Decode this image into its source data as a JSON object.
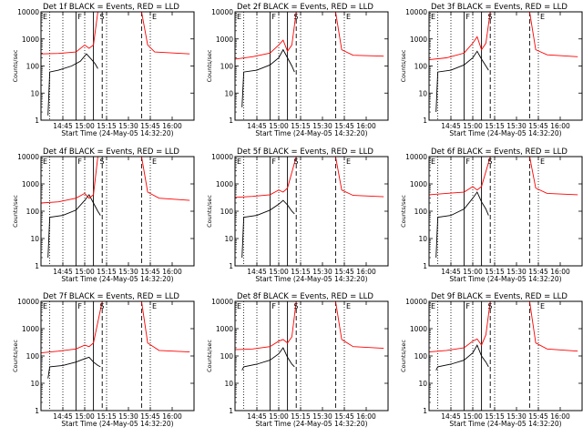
{
  "figure": {
    "xlabel": "Start Time (24-May-05 14:32:20)",
    "ylabel": "Counts/sec"
  },
  "chart_data": [
    {
      "type": "line",
      "title": "Det 1f BLACK = Events, RED = LLD",
      "xlabel": "Start Time (24-May-05 14:32:20)",
      "ylabel": "Counts/sec",
      "x_ticks": [
        "14:45",
        "15:00",
        "15:15",
        "15:30",
        "15:45",
        "16:00"
      ],
      "y_ticks": [
        "1",
        "10",
        "100",
        "1000",
        "10000"
      ],
      "ylim": [
        1,
        10000
      ],
      "yscale": "log",
      "markers": [
        "E",
        "F",
        "S",
        "E"
      ],
      "series": [
        {
          "name": "Events",
          "color": "#000000",
          "values": [
            [
              14.58,
              1.5
            ],
            [
              14.6,
              60
            ],
            [
              14.7,
              70
            ],
            [
              14.85,
              100
            ],
            [
              14.95,
              150
            ],
            [
              15.02,
              280
            ],
            [
              15.08,
              170
            ],
            [
              15.12,
              120
            ],
            [
              15.15,
              80
            ]
          ]
        },
        {
          "name": "LLD",
          "color": "#ff0000",
          "values": [
            [
              14.5,
              280
            ],
            [
              14.7,
              290
            ],
            [
              14.9,
              330
            ],
            [
              15.0,
              600
            ],
            [
              15.05,
              450
            ],
            [
              15.1,
              600
            ],
            [
              15.15,
              10000
            ],
            [
              15.65,
              10000
            ],
            [
              15.72,
              600
            ],
            [
              15.8,
              330
            ],
            [
              16.2,
              280
            ]
          ]
        }
      ]
    },
    {
      "type": "line",
      "title": "Det 2f BLACK = Events, RED = LLD",
      "xlabel": "Start Time (24-May-05 14:32:20)",
      "ylabel": "Counts/sec",
      "x_ticks": [
        "14:45",
        "15:00",
        "15:15",
        "15:30",
        "15:45",
        "16:00"
      ],
      "y_ticks": [
        "1",
        "10",
        "100",
        "1000",
        "10000"
      ],
      "ylim": [
        1,
        10000
      ],
      "yscale": "log",
      "markers": [
        "E",
        "F",
        "S",
        "E"
      ],
      "series": [
        {
          "name": "Events",
          "color": "#000000",
          "values": [
            [
              14.58,
              3
            ],
            [
              14.6,
              60
            ],
            [
              14.75,
              70
            ],
            [
              14.9,
              110
            ],
            [
              15.0,
              200
            ],
            [
              15.05,
              400
            ],
            [
              15.1,
              200
            ],
            [
              15.15,
              100
            ],
            [
              15.18,
              60
            ]
          ]
        },
        {
          "name": "LLD",
          "color": "#ff0000",
          "values": [
            [
              14.5,
              180
            ],
            [
              14.7,
              220
            ],
            [
              14.9,
              300
            ],
            [
              15.0,
              600
            ],
            [
              15.05,
              900
            ],
            [
              15.1,
              350
            ],
            [
              15.15,
              600
            ],
            [
              15.2,
              10000
            ],
            [
              15.65,
              10000
            ],
            [
              15.72,
              400
            ],
            [
              15.85,
              250
            ],
            [
              16.2,
              230
            ]
          ]
        }
      ]
    },
    {
      "type": "line",
      "title": "Det 3f BLACK = Events, RED = LLD",
      "xlabel": "Start Time (24-May-05 14:32:20)",
      "ylabel": "Counts/sec",
      "x_ticks": [
        "14:45",
        "15:00",
        "15:15",
        "15:30",
        "15:45",
        "16:00"
      ],
      "y_ticks": [
        "1",
        "10",
        "100",
        "1000",
        "10000"
      ],
      "ylim": [
        1,
        10000
      ],
      "yscale": "log",
      "markers": [
        "E",
        "F",
        "S",
        "E"
      ],
      "series": [
        {
          "name": "Events",
          "color": "#000000",
          "values": [
            [
              14.58,
              2
            ],
            [
              14.6,
              60
            ],
            [
              14.75,
              70
            ],
            [
              14.9,
              110
            ],
            [
              15.0,
              200
            ],
            [
              15.05,
              350
            ],
            [
              15.1,
              180
            ],
            [
              15.15,
              100
            ],
            [
              15.18,
              70
            ]
          ]
        },
        {
          "name": "LLD",
          "color": "#ff0000",
          "values": [
            [
              14.5,
              170
            ],
            [
              14.7,
              200
            ],
            [
              14.9,
              300
            ],
            [
              15.0,
              700
            ],
            [
              15.05,
              1200
            ],
            [
              15.1,
              400
            ],
            [
              15.15,
              700
            ],
            [
              15.2,
              10000
            ],
            [
              15.65,
              10000
            ],
            [
              15.72,
              400
            ],
            [
              15.85,
              260
            ],
            [
              16.2,
              220
            ]
          ]
        }
      ]
    },
    {
      "type": "line",
      "title": "Det 4f BLACK = Events, RED = LLD",
      "xlabel": "Start Time (24-May-05 14:32:20)",
      "ylabel": "Counts/sec",
      "x_ticks": [
        "14:45",
        "15:00",
        "15:15",
        "15:30",
        "15:45",
        "16:00"
      ],
      "y_ticks": [
        "1",
        "10",
        "100",
        "1000",
        "10000"
      ],
      "ylim": [
        1,
        10000
      ],
      "yscale": "log",
      "markers": [
        "E",
        "F",
        "S",
        "E"
      ],
      "series": [
        {
          "name": "Events",
          "color": "#000000",
          "values": [
            [
              14.58,
              2
            ],
            [
              14.6,
              60
            ],
            [
              14.75,
              70
            ],
            [
              14.9,
              110
            ],
            [
              15.0,
              250
            ],
            [
              15.05,
              400
            ],
            [
              15.1,
              200
            ],
            [
              15.15,
              100
            ],
            [
              15.18,
              70
            ]
          ]
        },
        {
          "name": "LLD",
          "color": "#ff0000",
          "values": [
            [
              14.5,
              200
            ],
            [
              14.7,
              220
            ],
            [
              14.9,
              300
            ],
            [
              15.0,
              450
            ],
            [
              15.05,
              300
            ],
            [
              15.1,
              400
            ],
            [
              15.15,
              10000
            ],
            [
              15.65,
              10000
            ],
            [
              15.72,
              500
            ],
            [
              15.85,
              300
            ],
            [
              16.2,
              250
            ]
          ]
        }
      ]
    },
    {
      "type": "line",
      "title": "Det 5f BLACK = Events, RED = LLD",
      "xlabel": "Start Time (24-May-05 14:32:20)",
      "ylabel": "Counts/sec",
      "x_ticks": [
        "14:45",
        "15:00",
        "15:15",
        "15:30",
        "15:45",
        "16:00"
      ],
      "y_ticks": [
        "1",
        "10",
        "100",
        "1000",
        "10000"
      ],
      "ylim": [
        1,
        10000
      ],
      "yscale": "log",
      "markers": [
        "E",
        "F",
        "S",
        "E"
      ],
      "series": [
        {
          "name": "Events",
          "color": "#000000",
          "values": [
            [
              14.58,
              2
            ],
            [
              14.6,
              60
            ],
            [
              14.75,
              70
            ],
            [
              14.9,
              110
            ],
            [
              15.0,
              180
            ],
            [
              15.05,
              250
            ],
            [
              15.1,
              170
            ],
            [
              15.15,
              100
            ],
            [
              15.18,
              80
            ]
          ]
        },
        {
          "name": "LLD",
          "color": "#ff0000",
          "values": [
            [
              14.5,
              320
            ],
            [
              14.7,
              350
            ],
            [
              14.9,
              400
            ],
            [
              15.0,
              600
            ],
            [
              15.05,
              500
            ],
            [
              15.1,
              700
            ],
            [
              15.2,
              10000
            ],
            [
              15.65,
              10000
            ],
            [
              15.72,
              600
            ],
            [
              15.85,
              380
            ],
            [
              16.2,
              340
            ]
          ]
        }
      ]
    },
    {
      "type": "line",
      "title": "Det 6f BLACK = Events, RED = LLD",
      "xlabel": "Start Time (24-May-05 14:32:20)",
      "ylabel": "Counts/sec",
      "x_ticks": [
        "14:45",
        "15:00",
        "15:15",
        "15:30",
        "15:45",
        "16:00"
      ],
      "y_ticks": [
        "1",
        "10",
        "100",
        "1000",
        "10000"
      ],
      "ylim": [
        1,
        10000
      ],
      "yscale": "log",
      "markers": [
        "E",
        "F",
        "S",
        "E"
      ],
      "series": [
        {
          "name": "Events",
          "color": "#000000",
          "values": [
            [
              14.58,
              2
            ],
            [
              14.6,
              60
            ],
            [
              14.75,
              70
            ],
            [
              14.9,
              120
            ],
            [
              15.0,
              300
            ],
            [
              15.05,
              500
            ],
            [
              15.1,
              220
            ],
            [
              15.15,
              120
            ],
            [
              15.18,
              70
            ]
          ]
        },
        {
          "name": "LLD",
          "color": "#ff0000",
          "values": [
            [
              14.5,
              400
            ],
            [
              14.7,
              450
            ],
            [
              14.9,
              500
            ],
            [
              15.0,
              800
            ],
            [
              15.05,
              600
            ],
            [
              15.1,
              800
            ],
            [
              15.2,
              10000
            ],
            [
              15.65,
              10000
            ],
            [
              15.72,
              700
            ],
            [
              15.85,
              450
            ],
            [
              16.2,
              400
            ]
          ]
        }
      ]
    },
    {
      "type": "line",
      "title": "Det 7f BLACK = Events, RED = LLD",
      "xlabel": "Start Time (24-May-05 14:32:20)",
      "ylabel": "Counts/sec",
      "x_ticks": [
        "14:45",
        "15:00",
        "15:15",
        "15:30",
        "15:45",
        "16:00"
      ],
      "y_ticks": [
        "1",
        "10",
        "100",
        "1000",
        "10000"
      ],
      "ylim": [
        1,
        10000
      ],
      "yscale": "log",
      "markers": [
        "E",
        "F",
        "S",
        "E"
      ],
      "series": [
        {
          "name": "Events",
          "color": "#000000",
          "values": [
            [
              14.58,
              15
            ],
            [
              14.6,
              40
            ],
            [
              14.75,
              45
            ],
            [
              14.9,
              60
            ],
            [
              15.0,
              80
            ],
            [
              15.05,
              90
            ],
            [
              15.1,
              60
            ],
            [
              15.15,
              45
            ],
            [
              15.18,
              40
            ]
          ]
        },
        {
          "name": "LLD",
          "color": "#ff0000",
          "values": [
            [
              14.5,
              130
            ],
            [
              14.7,
              150
            ],
            [
              14.9,
              180
            ],
            [
              15.0,
              250
            ],
            [
              15.05,
              220
            ],
            [
              15.1,
              300
            ],
            [
              15.2,
              10000
            ],
            [
              15.65,
              10000
            ],
            [
              15.72,
              300
            ],
            [
              15.85,
              160
            ],
            [
              16.2,
              140
            ]
          ]
        }
      ]
    },
    {
      "type": "line",
      "title": "Det 8f BLACK = Events, RED = LLD",
      "xlabel": "Start Time (24-May-05 14:32:20)",
      "ylabel": "Counts/sec",
      "x_ticks": [
        "14:45",
        "15:00",
        "15:15",
        "15:30",
        "15:45",
        "16:00"
      ],
      "y_ticks": [
        "1",
        "10",
        "100",
        "1000",
        "10000"
      ],
      "ylim": [
        1,
        10000
      ],
      "yscale": "log",
      "markers": [
        "E",
        "F",
        "S",
        "E"
      ],
      "series": [
        {
          "name": "Events",
          "color": "#000000",
          "values": [
            [
              14.58,
              30
            ],
            [
              14.6,
              40
            ],
            [
              14.75,
              50
            ],
            [
              14.9,
              70
            ],
            [
              15.0,
              120
            ],
            [
              15.05,
              200
            ],
            [
              15.1,
              90
            ],
            [
              15.15,
              50
            ],
            [
              15.18,
              40
            ]
          ]
        },
        {
          "name": "LLD",
          "color": "#ff0000",
          "values": [
            [
              14.5,
              170
            ],
            [
              14.7,
              180
            ],
            [
              14.9,
              220
            ],
            [
              15.0,
              350
            ],
            [
              15.05,
              400
            ],
            [
              15.1,
              300
            ],
            [
              15.15,
              500
            ],
            [
              15.2,
              10000
            ],
            [
              15.65,
              10000
            ],
            [
              15.72,
              400
            ],
            [
              15.85,
              220
            ],
            [
              16.2,
              190
            ]
          ]
        }
      ]
    },
    {
      "type": "line",
      "title": "Det 9f BLACK = Events, RED = LLD",
      "xlabel": "Start Time (24-May-05 14:32:20)",
      "ylabel": "Counts/sec",
      "x_ticks": [
        "14:45",
        "15:00",
        "15:15",
        "15:30",
        "15:45",
        "16:00"
      ],
      "y_ticks": [
        "1",
        "10",
        "100",
        "1000",
        "10000"
      ],
      "ylim": [
        1,
        10000
      ],
      "yscale": "log",
      "markers": [
        "E",
        "F",
        "S",
        "E"
      ],
      "series": [
        {
          "name": "Events",
          "color": "#000000",
          "values": [
            [
              14.58,
              30
            ],
            [
              14.6,
              40
            ],
            [
              14.75,
              50
            ],
            [
              14.9,
              70
            ],
            [
              15.0,
              130
            ],
            [
              15.05,
              250
            ],
            [
              15.1,
              100
            ],
            [
              15.15,
              60
            ],
            [
              15.18,
              40
            ]
          ]
        },
        {
          "name": "LLD",
          "color": "#ff0000",
          "values": [
            [
              14.5,
              140
            ],
            [
              14.7,
              160
            ],
            [
              14.9,
              200
            ],
            [
              15.0,
              350
            ],
            [
              15.05,
              420
            ],
            [
              15.1,
              250
            ],
            [
              15.15,
              600
            ],
            [
              15.2,
              10000
            ],
            [
              15.65,
              10000
            ],
            [
              15.72,
              300
            ],
            [
              15.85,
              180
            ],
            [
              16.2,
              150
            ]
          ]
        }
      ]
    }
  ]
}
